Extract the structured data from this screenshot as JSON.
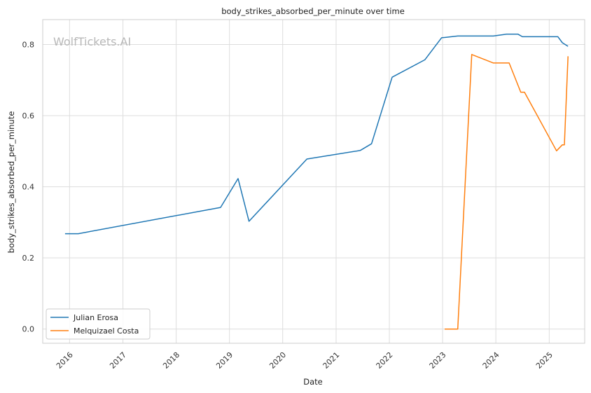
{
  "watermark": "WolfTickets.AI",
  "chart_data": {
    "type": "line",
    "title": "body_strikes_absorbed_per_minute over time",
    "xlabel": "Date",
    "ylabel": "body_strikes_absorbed_per_minute",
    "x_ticks": [
      "2016",
      "2017",
      "2018",
      "2019",
      "2020",
      "2021",
      "2022",
      "2023",
      "2024",
      "2025"
    ],
    "y_ticks": [
      "0.0",
      "0.2",
      "0.4",
      "0.6",
      "0.8"
    ],
    "xlim": [
      "2015-07-01",
      "2025-09-01"
    ],
    "ylim": [
      -0.04,
      0.87
    ],
    "grid": true,
    "legend_position": "lower-left",
    "colors": {
      "Julian Erosa": "#1f77b4",
      "Melquizael Costa": "#ff7f0e"
    },
    "series": [
      {
        "name": "Julian Erosa",
        "points": [
          {
            "x": "2015-12-01",
            "y": 0.268
          },
          {
            "x": "2016-03-01",
            "y": 0.268
          },
          {
            "x": "2018-11-01",
            "y": 0.342
          },
          {
            "x": "2019-03-01",
            "y": 0.423
          },
          {
            "x": "2019-05-15",
            "y": 0.303
          },
          {
            "x": "2020-06-15",
            "y": 0.478
          },
          {
            "x": "2021-06-15",
            "y": 0.502
          },
          {
            "x": "2021-09-01",
            "y": 0.521
          },
          {
            "x": "2022-01-20",
            "y": 0.708
          },
          {
            "x": "2022-09-01",
            "y": 0.757
          },
          {
            "x": "2022-12-25",
            "y": 0.819
          },
          {
            "x": "2023-01-20",
            "y": 0.82
          },
          {
            "x": "2023-04-15",
            "y": 0.824
          },
          {
            "x": "2023-12-15",
            "y": 0.824
          },
          {
            "x": "2024-03-15",
            "y": 0.829
          },
          {
            "x": "2024-06-01",
            "y": 0.829
          },
          {
            "x": "2024-07-01",
            "y": 0.822
          },
          {
            "x": "2025-03-01",
            "y": 0.822
          },
          {
            "x": "2025-04-01",
            "y": 0.805
          },
          {
            "x": "2025-05-10",
            "y": 0.795
          }
        ]
      },
      {
        "name": "Melquizael Costa",
        "points": [
          {
            "x": "2023-01-15",
            "y": 0.0
          },
          {
            "x": "2023-04-15",
            "y": 0.0
          },
          {
            "x": "2023-07-20",
            "y": 0.772
          },
          {
            "x": "2023-12-15",
            "y": 0.748
          },
          {
            "x": "2024-04-01",
            "y": 0.748
          },
          {
            "x": "2024-06-20",
            "y": 0.666
          },
          {
            "x": "2024-07-15",
            "y": 0.666
          },
          {
            "x": "2025-02-20",
            "y": 0.501
          },
          {
            "x": "2025-04-01",
            "y": 0.518
          },
          {
            "x": "2025-04-15",
            "y": 0.518
          },
          {
            "x": "2025-05-10",
            "y": 0.767
          }
        ]
      }
    ]
  }
}
